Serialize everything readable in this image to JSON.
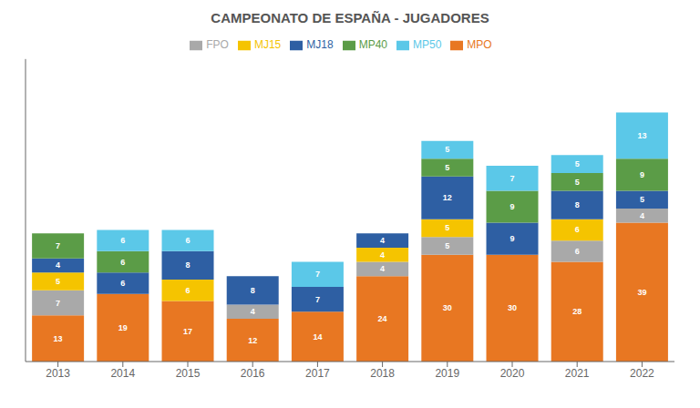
{
  "chart_data": {
    "type": "bar",
    "title": "CAMPEONATO DE ESPAÑA - JUGADORES",
    "categories": [
      "2013",
      "2014",
      "2015",
      "2016",
      "2017",
      "2018",
      "2019",
      "2020",
      "2021",
      "2022"
    ],
    "series": [
      {
        "name": "MPO",
        "color": "#E87722",
        "values": [
          13,
          19,
          17,
          12,
          14,
          24,
          30,
          30,
          28,
          39
        ]
      },
      {
        "name": "FPO",
        "color": "#A9A9A9",
        "values": [
          7,
          0,
          0,
          4,
          0,
          4,
          5,
          0,
          6,
          4
        ]
      },
      {
        "name": "MJ15",
        "color": "#F5C400",
        "values": [
          5,
          0,
          6,
          0,
          0,
          4,
          5,
          0,
          6,
          0
        ]
      },
      {
        "name": "MJ18",
        "color": "#2E5FA3",
        "values": [
          4,
          6,
          8,
          8,
          7,
          4,
          12,
          9,
          8,
          5
        ]
      },
      {
        "name": "MP40",
        "color": "#5B9C47",
        "values": [
          7,
          6,
          0,
          0,
          0,
          0,
          5,
          9,
          5,
          9
        ]
      },
      {
        "name": "MP50",
        "color": "#5BC8E8",
        "values": [
          0,
          6,
          6,
          0,
          7,
          0,
          5,
          7,
          5,
          13
        ]
      }
    ],
    "ylim": [
      0,
      85
    ],
    "stacked": true,
    "data_labels": true,
    "tick_labels": "x",
    "grid": false,
    "legend": "top"
  }
}
